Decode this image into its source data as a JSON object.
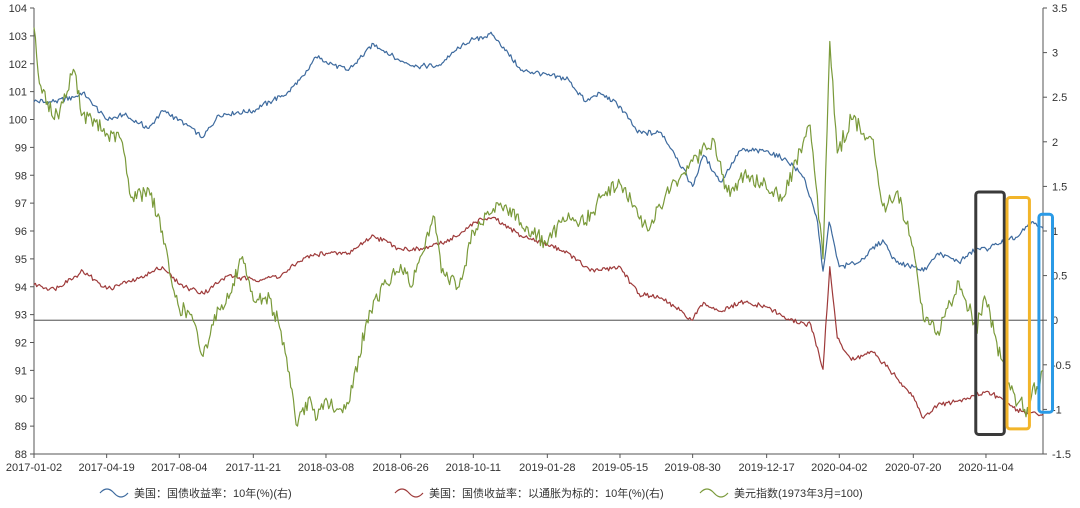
{
  "chart_data": {
    "type": "line",
    "x_ticks": [
      "2017-01-02",
      "2017-04-19",
      "2017-08-04",
      "2017-11-21",
      "2018-03-08",
      "2018-06-26",
      "2018-10-11",
      "2019-01-28",
      "2019-05-15",
      "2019-08-30",
      "2019-12-17",
      "2020-04-02",
      "2020-07-20",
      "2020-11-04"
    ],
    "x_range": [
      "2017-01-02",
      "2021-01-27"
    ],
    "y_left": {
      "min": 88,
      "max": 104,
      "step": 1,
      "ticks": [
        88,
        89,
        90,
        91,
        92,
        93,
        94,
        95,
        96,
        97,
        98,
        99,
        100,
        101,
        102,
        103,
        104
      ]
    },
    "y_right": {
      "min": -1.5,
      "max": 3.5,
      "step": 0.5,
      "ticks": [
        -1.5,
        -1,
        -0.5,
        0,
        0.5,
        1,
        1.5,
        2,
        2.5,
        3,
        3.5
      ]
    },
    "zero_line_right": 0,
    "grid": false,
    "legend_position": "bottom",
    "series": [
      {
        "name": "美国：国债收益率：10年(%)(右)",
        "axis": "right",
        "color": "#3d6a9e",
        "points": [
          [
            "2017-01-02",
            2.45
          ],
          [
            "2017-02-01",
            2.45
          ],
          [
            "2017-03-01",
            2.5
          ],
          [
            "2017-03-15",
            2.55
          ],
          [
            "2017-04-19",
            2.25
          ],
          [
            "2017-05-15",
            2.3
          ],
          [
            "2017-06-20",
            2.15
          ],
          [
            "2017-07-10",
            2.35
          ],
          [
            "2017-08-04",
            2.25
          ],
          [
            "2017-09-08",
            2.05
          ],
          [
            "2017-10-01",
            2.3
          ],
          [
            "2017-11-21",
            2.35
          ],
          [
            "2017-12-15",
            2.45
          ],
          [
            "2018-01-10",
            2.55
          ],
          [
            "2018-02-05",
            2.75
          ],
          [
            "2018-02-21",
            2.95
          ],
          [
            "2018-03-08",
            2.9
          ],
          [
            "2018-04-10",
            2.8
          ],
          [
            "2018-05-17",
            3.1
          ],
          [
            "2018-06-26",
            2.9
          ],
          [
            "2018-07-20",
            2.85
          ],
          [
            "2018-08-20",
            2.85
          ],
          [
            "2018-09-20",
            3.05
          ],
          [
            "2018-10-11",
            3.15
          ],
          [
            "2018-11-08",
            3.2
          ],
          [
            "2018-12-01",
            3.0
          ],
          [
            "2018-12-20",
            2.8
          ],
          [
            "2019-01-28",
            2.75
          ],
          [
            "2019-02-28",
            2.7
          ],
          [
            "2019-03-25",
            2.45
          ],
          [
            "2019-04-15",
            2.55
          ],
          [
            "2019-05-15",
            2.4
          ],
          [
            "2019-06-10",
            2.1
          ],
          [
            "2019-07-15",
            2.1
          ],
          [
            "2019-08-01",
            1.9
          ],
          [
            "2019-08-30",
            1.5
          ],
          [
            "2019-09-15",
            1.85
          ],
          [
            "2019-10-10",
            1.55
          ],
          [
            "2019-11-08",
            1.9
          ],
          [
            "2019-12-17",
            1.9
          ],
          [
            "2020-01-15",
            1.8
          ],
          [
            "2020-02-10",
            1.6
          ],
          [
            "2020-03-01",
            1.1
          ],
          [
            "2020-03-09",
            0.55
          ],
          [
            "2020-03-18",
            1.1
          ],
          [
            "2020-04-02",
            0.6
          ],
          [
            "2020-05-01",
            0.65
          ],
          [
            "2020-06-05",
            0.9
          ],
          [
            "2020-06-25",
            0.65
          ],
          [
            "2020-07-20",
            0.6
          ],
          [
            "2020-08-04",
            0.55
          ],
          [
            "2020-08-25",
            0.75
          ],
          [
            "2020-09-25",
            0.65
          ],
          [
            "2020-10-20",
            0.8
          ],
          [
            "2020-11-04",
            0.8
          ],
          [
            "2020-11-20",
            0.85
          ],
          [
            "2020-12-20",
            0.93
          ],
          [
            "2021-01-10",
            1.1
          ],
          [
            "2021-01-27",
            1.03
          ]
        ]
      },
      {
        "name": "美国：国债收益率：以通胀为标的：10年(%)(右)",
        "axis": "right",
        "color": "#9e3a3a",
        "points": [
          [
            "2017-01-02",
            0.4
          ],
          [
            "2017-02-01",
            0.35
          ],
          [
            "2017-03-15",
            0.55
          ],
          [
            "2017-04-19",
            0.35
          ],
          [
            "2017-06-01",
            0.45
          ],
          [
            "2017-07-10",
            0.6
          ],
          [
            "2017-08-04",
            0.4
          ],
          [
            "2017-09-08",
            0.3
          ],
          [
            "2017-10-15",
            0.5
          ],
          [
            "2017-11-21",
            0.45
          ],
          [
            "2018-01-01",
            0.5
          ],
          [
            "2018-02-05",
            0.7
          ],
          [
            "2018-03-08",
            0.75
          ],
          [
            "2018-04-10",
            0.75
          ],
          [
            "2018-05-17",
            0.95
          ],
          [
            "2018-06-26",
            0.8
          ],
          [
            "2018-08-01",
            0.8
          ],
          [
            "2018-09-20",
            0.95
          ],
          [
            "2018-10-11",
            1.1
          ],
          [
            "2018-11-08",
            1.15
          ],
          [
            "2018-12-20",
            0.95
          ],
          [
            "2019-01-28",
            0.85
          ],
          [
            "2019-03-01",
            0.75
          ],
          [
            "2019-04-01",
            0.55
          ],
          [
            "2019-05-15",
            0.6
          ],
          [
            "2019-06-10",
            0.3
          ],
          [
            "2019-07-15",
            0.25
          ],
          [
            "2019-08-30",
            0.0
          ],
          [
            "2019-09-15",
            0.2
          ],
          [
            "2019-10-10",
            0.1
          ],
          [
            "2019-11-08",
            0.2
          ],
          [
            "2019-12-17",
            0.15
          ],
          [
            "2020-01-20",
            0.0
          ],
          [
            "2020-02-20",
            -0.05
          ],
          [
            "2020-03-09",
            -0.55
          ],
          [
            "2020-03-19",
            0.6
          ],
          [
            "2020-03-30",
            -0.2
          ],
          [
            "2020-04-20",
            -0.45
          ],
          [
            "2020-05-20",
            -0.35
          ],
          [
            "2020-06-20",
            -0.6
          ],
          [
            "2020-07-20",
            -0.85
          ],
          [
            "2020-08-04",
            -1.1
          ],
          [
            "2020-08-25",
            -0.95
          ],
          [
            "2020-09-25",
            -0.9
          ],
          [
            "2020-10-20",
            -0.85
          ],
          [
            "2020-11-04",
            -0.8
          ],
          [
            "2020-11-20",
            -0.85
          ],
          [
            "2020-12-20",
            -1.0
          ],
          [
            "2021-01-05",
            -1.05
          ],
          [
            "2021-01-27",
            -1.05
          ]
        ]
      },
      {
        "name": "美元指数(1973年3月=100)",
        "axis": "left",
        "color": "#7a9a3a",
        "points": [
          [
            "2017-01-02",
            103.3
          ],
          [
            "2017-01-10",
            101.3
          ],
          [
            "2017-02-01",
            100.0
          ],
          [
            "2017-02-20",
            101.0
          ],
          [
            "2017-03-01",
            101.8
          ],
          [
            "2017-03-15",
            100.2
          ],
          [
            "2017-04-19",
            99.5
          ],
          [
            "2017-05-10",
            99.3
          ],
          [
            "2017-05-25",
            97.2
          ],
          [
            "2017-06-20",
            97.5
          ],
          [
            "2017-07-10",
            96.0
          ],
          [
            "2017-07-25",
            94.0
          ],
          [
            "2017-08-04",
            93.2
          ],
          [
            "2017-08-20",
            93.0
          ],
          [
            "2017-09-08",
            91.5
          ],
          [
            "2017-09-25",
            93.0
          ],
          [
            "2017-10-20",
            93.8
          ],
          [
            "2017-11-03",
            95.0
          ],
          [
            "2017-11-21",
            93.5
          ],
          [
            "2017-12-15",
            93.6
          ],
          [
            "2018-01-05",
            92.0
          ],
          [
            "2018-01-25",
            89.0
          ],
          [
            "2018-02-10",
            90.0
          ],
          [
            "2018-02-21",
            89.2
          ],
          [
            "2018-03-08",
            90.0
          ],
          [
            "2018-03-20",
            89.5
          ],
          [
            "2018-04-10",
            89.8
          ],
          [
            "2018-04-25",
            91.5
          ],
          [
            "2018-05-17",
            93.5
          ],
          [
            "2018-06-26",
            94.8
          ],
          [
            "2018-07-10",
            94.0
          ],
          [
            "2018-08-15",
            96.5
          ],
          [
            "2018-08-25",
            94.5
          ],
          [
            "2018-09-20",
            94.0
          ],
          [
            "2018-10-11",
            96.0
          ],
          [
            "2018-10-30",
            96.6
          ],
          [
            "2018-11-20",
            97.0
          ],
          [
            "2018-12-20",
            96.3
          ],
          [
            "2019-01-28",
            95.5
          ],
          [
            "2019-02-20",
            96.5
          ],
          [
            "2019-03-25",
            96.3
          ],
          [
            "2019-04-20",
            97.3
          ],
          [
            "2019-05-15",
            97.7
          ],
          [
            "2019-06-25",
            96.0
          ],
          [
            "2019-07-20",
            97.2
          ],
          [
            "2019-08-30",
            98.5
          ],
          [
            "2019-09-30",
            99.3
          ],
          [
            "2019-10-20",
            97.4
          ],
          [
            "2019-11-20",
            98.0
          ],
          [
            "2019-12-17",
            97.5
          ],
          [
            "2020-01-10",
            97.2
          ],
          [
            "2020-02-19",
            99.8
          ],
          [
            "2020-03-09",
            95.0
          ],
          [
            "2020-03-19",
            102.8
          ],
          [
            "2020-03-30",
            98.8
          ],
          [
            "2020-04-20",
            100.0
          ],
          [
            "2020-05-20",
            99.3
          ],
          [
            "2020-06-05",
            96.9
          ],
          [
            "2020-06-25",
            97.4
          ],
          [
            "2020-07-20",
            95.4
          ],
          [
            "2020-08-04",
            92.8
          ],
          [
            "2020-08-25",
            92.4
          ],
          [
            "2020-09-25",
            94.2
          ],
          [
            "2020-10-20",
            92.5
          ],
          [
            "2020-11-04",
            93.5
          ],
          [
            "2020-11-20",
            92.0
          ],
          [
            "2020-12-10",
            90.3
          ],
          [
            "2020-12-31",
            89.6
          ],
          [
            "2021-01-06",
            89.4
          ],
          [
            "2021-01-12",
            90.4
          ],
          [
            "2021-01-20",
            90.3
          ],
          [
            "2021-01-27",
            91.0
          ]
        ]
      }
    ],
    "annotations": [
      {
        "shape": "rect",
        "color": "#3a3a3a",
        "x0": "2020-10-20",
        "x1": "2020-12-01",
        "y0_left": 88.7,
        "y1_left": 97.4
      },
      {
        "shape": "rect",
        "color": "#f2b52a",
        "x0": "2020-12-05",
        "x1": "2021-01-07",
        "y0_left": 88.9,
        "y1_left": 97.2
      },
      {
        "shape": "rect",
        "color": "#2a9ae6",
        "x0": "2021-01-21",
        "x1": "2021-02-10",
        "y0_left": 89.5,
        "y1_left": 96.6
      }
    ]
  }
}
